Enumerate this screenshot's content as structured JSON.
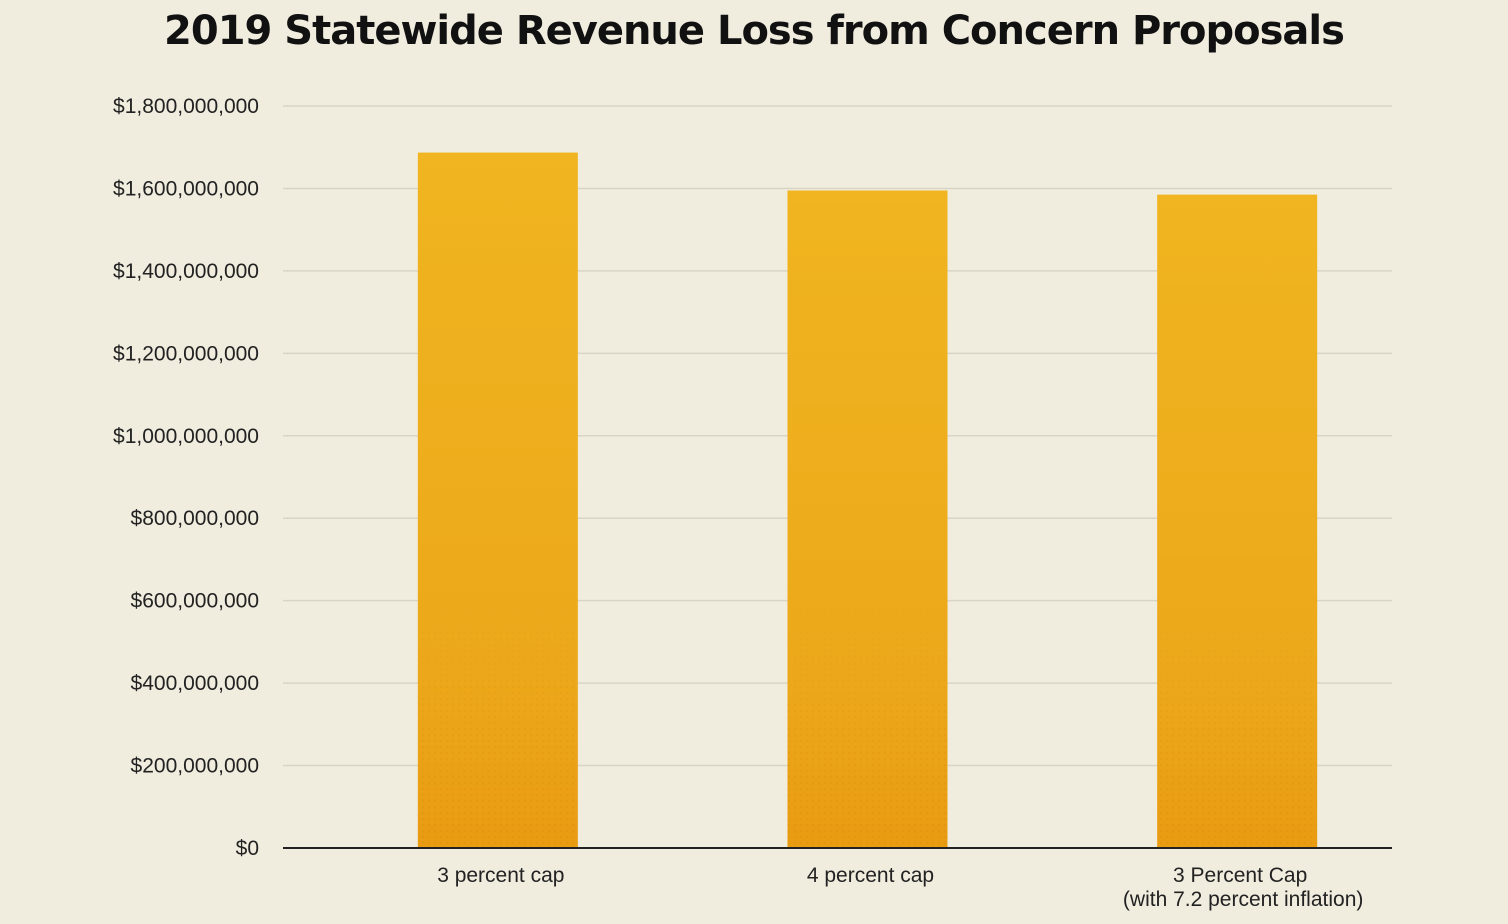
{
  "chart_data": {
    "type": "bar",
    "title": "2019 Statewide Revenue Loss from Concern Proposals",
    "xlabel": "",
    "ylabel": "",
    "categories": [
      [
        "3 percent cap"
      ],
      [
        "4 percent cap"
      ],
      [
        "3 Percent Cap",
        "(with 7.2 percent inflation)"
      ]
    ],
    "values": [
      1687000000,
      1595000000,
      1585000000
    ],
    "ylim": [
      0,
      1800000000
    ],
    "y_ticks": [
      0,
      200000000,
      400000000,
      600000000,
      800000000,
      1000000000,
      1200000000,
      1400000000,
      1600000000,
      1800000000
    ],
    "y_tick_labels": [
      "$0",
      "$200,000,000",
      "$400,000,000",
      "$600,000,000",
      "$800,000,000",
      "$1,000,000,000",
      "$1,200,000,000",
      "$1,400,000,000",
      "$1,600,000,000",
      "$1,800,000,000"
    ],
    "grid": true,
    "legend": "none",
    "colors": {
      "bar_top": "#f0b520",
      "bar_bottom": "#e99b12",
      "grid": "#d8d4c6",
      "axis": "#222222",
      "background": "#f0ecde"
    }
  }
}
